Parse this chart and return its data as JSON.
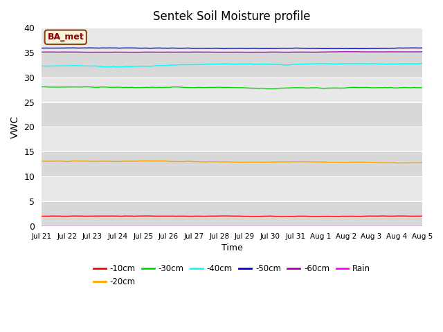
{
  "title": "Sentek Soil Moisture profile",
  "xlabel": "Time",
  "ylabel": "VWC",
  "annotation": "BA_met",
  "bg_light": "#e8e8e8",
  "bg_dark": "#d8d8d8",
  "ylim": [
    0,
    40
  ],
  "yticks": [
    0,
    5,
    10,
    15,
    20,
    25,
    30,
    35,
    40
  ],
  "n_points": 600,
  "series": {
    "-10cm": {
      "color": "#ff0000",
      "base": 2.0,
      "amp": 0.12,
      "drift": -0.05
    },
    "-20cm": {
      "color": "#ffa500",
      "base": 13.1,
      "amp": 0.2,
      "drift": -0.35
    },
    "-30cm": {
      "color": "#00dd00",
      "base": 28.1,
      "amp": 0.2,
      "drift": -0.35
    },
    "-40cm": {
      "color": "#00ffff",
      "base": 32.3,
      "amp": 0.12,
      "drift": -0.25
    },
    "-50cm": {
      "color": "#0000dd",
      "base": 35.9,
      "amp": 0.15,
      "drift": -0.1
    },
    "-60cm": {
      "color": "#aa00aa",
      "base": 35.1,
      "amp": 0.05,
      "drift": -0.05
    },
    "Rain": {
      "color": "#ff00ff",
      "base": 0.02,
      "amp": 0.0,
      "drift": 0.0
    }
  },
  "xtick_labels": [
    "Jul 21",
    "Jul 22",
    "Jul 23",
    "Jul 24",
    "Jul 25",
    "Jul 26",
    "Jul 27",
    "Jul 28",
    "Jul 29",
    "Jul 30",
    "Jul 31",
    "Aug 1",
    "Aug 2",
    "Aug 3",
    "Aug 4",
    "Aug 5"
  ],
  "legend_order": [
    "-10cm",
    "-20cm",
    "-30cm",
    "-40cm",
    "-50cm",
    "-60cm",
    "Rain"
  ]
}
